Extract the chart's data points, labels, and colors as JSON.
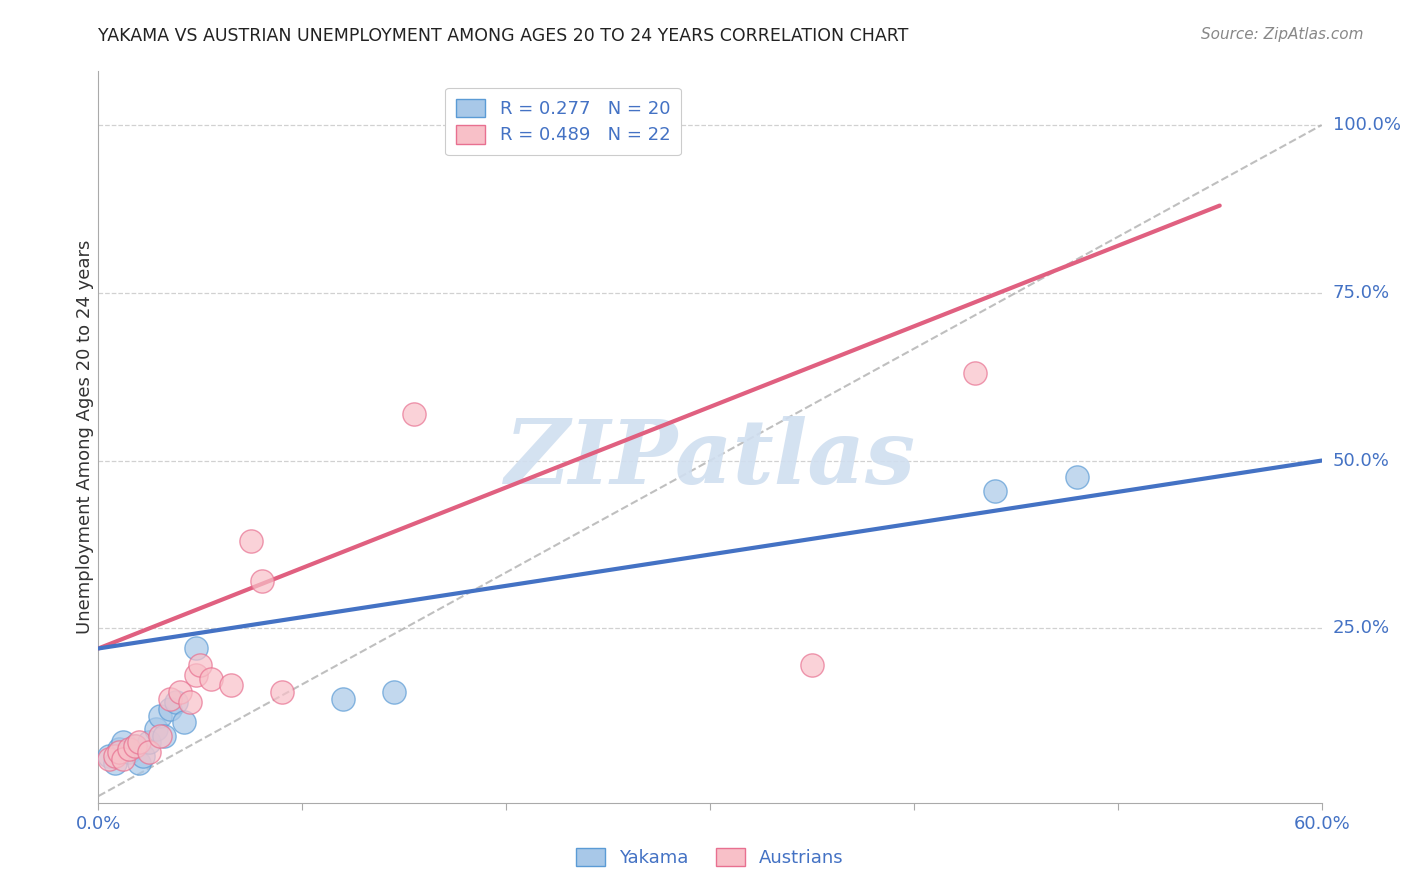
{
  "title": "YAKAMA VS AUSTRIAN UNEMPLOYMENT AMONG AGES 20 TO 24 YEARS CORRELATION CHART",
  "source": "Source: ZipAtlas.com",
  "ylabel": "Unemployment Among Ages 20 to 24 years",
  "xlim": [
    0.0,
    0.6
  ],
  "ylim": [
    -0.01,
    1.08
  ],
  "x_ticks": [
    0.0,
    0.1,
    0.2,
    0.3,
    0.4,
    0.5,
    0.6
  ],
  "y_ticks_right": [
    0.25,
    0.5,
    0.75,
    1.0
  ],
  "y_tick_labels_right": [
    "25.0%",
    "50.0%",
    "75.0%",
    "100.0%"
  ],
  "legend_blue_text": "R = 0.277   N = 20",
  "legend_pink_text": "R = 0.489   N = 22",
  "blue_scatter_color": "#a8c8e8",
  "blue_edge_color": "#5b9bd5",
  "pink_scatter_color": "#f8c0c8",
  "pink_edge_color": "#e87090",
  "blue_line_color": "#4472c4",
  "pink_line_color": "#e06080",
  "axis_label_color": "#4472c4",
  "title_color": "#222222",
  "grid_color": "#cccccc",
  "watermark_color": "#d0dff0",
  "background_color": "#ffffff",
  "blue_line_x": [
    0.0,
    0.6
  ],
  "blue_line_y": [
    0.22,
    0.5
  ],
  "pink_line_x": [
    0.0,
    0.55
  ],
  "pink_line_y": [
    0.22,
    0.88
  ],
  "diag_line_x": [
    0.0,
    0.6
  ],
  "diag_line_y": [
    0.0,
    1.0
  ],
  "yakama_x": [
    0.005,
    0.008,
    0.01,
    0.012,
    0.015,
    0.018,
    0.02,
    0.022,
    0.025,
    0.028,
    0.03,
    0.032,
    0.035,
    0.038,
    0.042,
    0.048,
    0.12,
    0.145,
    0.44,
    0.48
  ],
  "yakama_y": [
    0.06,
    0.05,
    0.07,
    0.08,
    0.065,
    0.075,
    0.05,
    0.06,
    0.08,
    0.1,
    0.12,
    0.09,
    0.13,
    0.14,
    0.11,
    0.22,
    0.145,
    0.155,
    0.455,
    0.475
  ],
  "austrian_x": [
    0.005,
    0.008,
    0.01,
    0.012,
    0.015,
    0.018,
    0.02,
    0.025,
    0.03,
    0.035,
    0.04,
    0.045,
    0.048,
    0.05,
    0.055,
    0.065,
    0.075,
    0.08,
    0.09,
    0.155,
    0.35,
    0.43
  ],
  "austrian_y": [
    0.055,
    0.06,
    0.065,
    0.055,
    0.07,
    0.075,
    0.08,
    0.065,
    0.09,
    0.145,
    0.155,
    0.14,
    0.18,
    0.195,
    0.175,
    0.165,
    0.38,
    0.32,
    0.155,
    0.57,
    0.195,
    0.63
  ]
}
